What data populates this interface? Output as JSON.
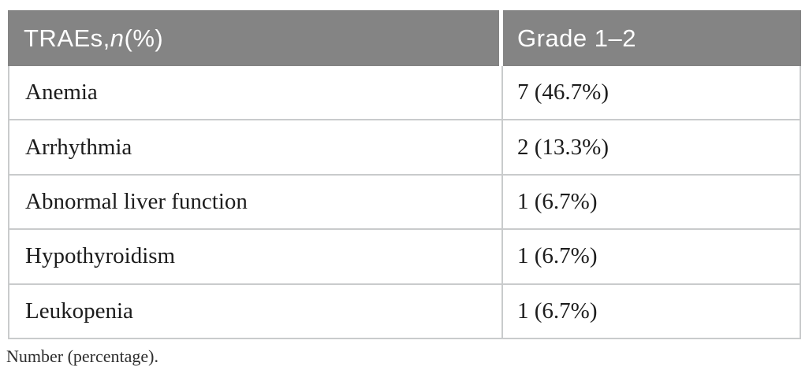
{
  "colors": {
    "header_bg": "#848484",
    "header_text": "#ffffff",
    "border": "#c9cbcc",
    "body_text": "#1c1c1c",
    "footnote_text": "#2e2e2e"
  },
  "table": {
    "header": {
      "col1_prefix": "TRAEs, ",
      "col1_italic": "n",
      "col1_suffix": " (%)",
      "col2": "Grade 1–2"
    },
    "rows": [
      {
        "label": "Anemia",
        "value": "7 (46.7%)"
      },
      {
        "label": "Arrhythmia",
        "value": "2 (13.3%)"
      },
      {
        "label": "Abnormal liver function",
        "value": "1 (6.7%)"
      },
      {
        "label": "Hypothyroidism",
        "value": "1 (6.7%)"
      },
      {
        "label": "Leukopenia",
        "value": "1 (6.7%)"
      }
    ]
  },
  "footnote": "Number (percentage)."
}
